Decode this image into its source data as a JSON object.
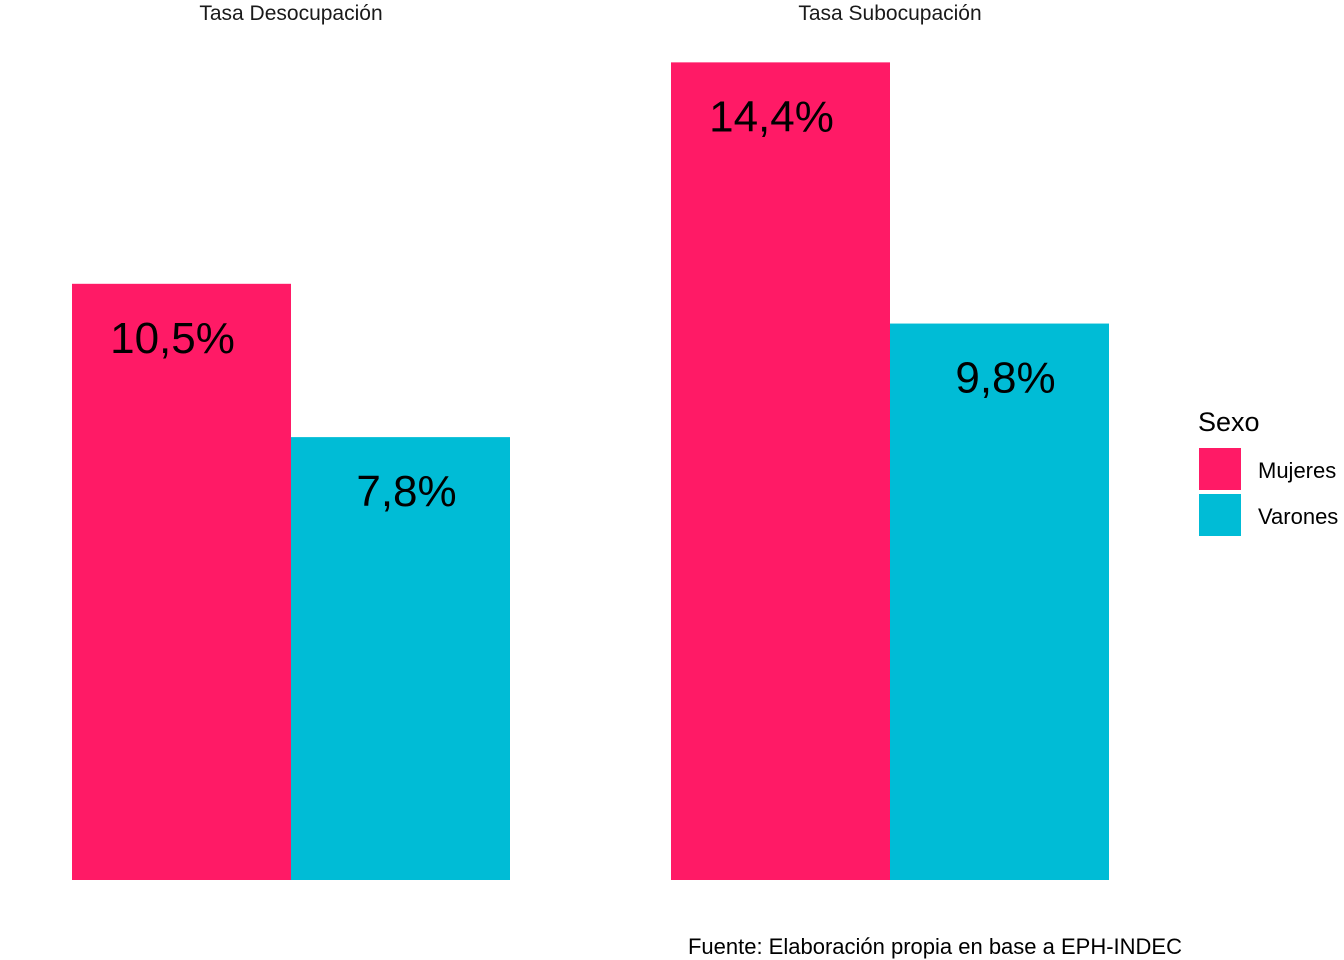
{
  "chart_data": {
    "type": "bar",
    "facets": [
      "Tasa Desocupación",
      "Tasa Subocupación"
    ],
    "series": [
      {
        "name": "Mujeres",
        "values": [
          10.5,
          14.4
        ],
        "color": "#FF1A66"
      },
      {
        "name": "Varones",
        "values": [
          7.8,
          9.8
        ],
        "color": "#00BCD6"
      }
    ],
    "value_labels": [
      [
        "10,5%",
        "14,4%"
      ],
      [
        "7,8%",
        "9,8%"
      ]
    ],
    "legend": {
      "title": "Sexo",
      "position": "right"
    },
    "caption": "Fuente: Elaboración propia en base a EPH-INDEC",
    "grid": false,
    "axes_visible": false,
    "ylim": [
      0,
      15
    ]
  }
}
